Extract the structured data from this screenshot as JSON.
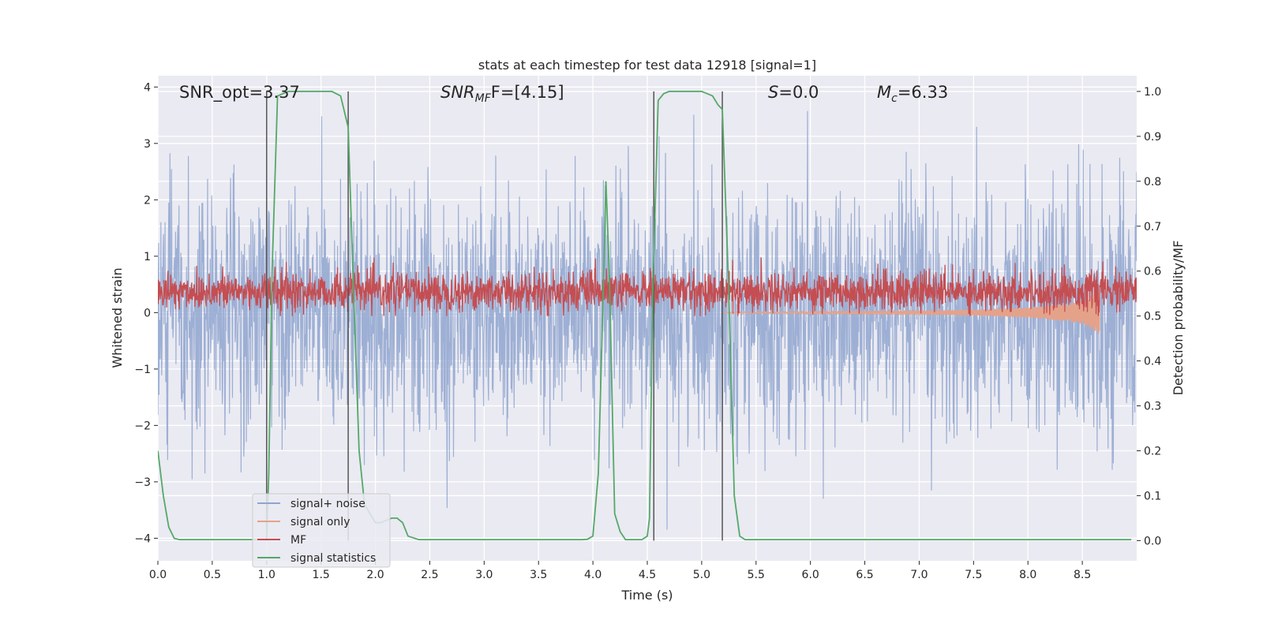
{
  "chart_data": {
    "type": "line",
    "title": "stats at each timestep for test data 12918 [signal=1]",
    "xlabel": "Time (s)",
    "ylabel_left": "Whitened strain",
    "ylabel_right": "Detection probability/MF",
    "xlim": [
      0,
      9.0
    ],
    "ylim_left": [
      -4.4,
      4.2
    ],
    "ylim_right": [
      -0.045,
      1.035
    ],
    "x_ticks": [
      0.0,
      0.5,
      1.0,
      1.5,
      2.0,
      2.5,
      3.0,
      3.5,
      4.0,
      4.5,
      5.0,
      5.5,
      6.0,
      6.5,
      7.0,
      7.5,
      8.0,
      8.5
    ],
    "x_tick_labels": [
      "0.0",
      "0.5",
      "1.0",
      "1.5",
      "2.0",
      "2.5",
      "3.0",
      "3.5",
      "4.0",
      "4.5",
      "5.0",
      "5.5",
      "6.0",
      "6.5",
      "7.0",
      "7.5",
      "8.0",
      "8.5"
    ],
    "y_left_ticks": [
      4,
      3,
      2,
      1,
      0,
      -1,
      -2,
      -3,
      -4
    ],
    "y_left_tick_labels": [
      "4",
      "3",
      "2",
      "1",
      "0",
      "−1",
      "−2",
      "−3",
      "−4"
    ],
    "y_right_ticks": [
      1.0,
      0.9,
      0.8,
      0.7,
      0.6,
      0.5,
      0.4,
      0.3,
      0.2,
      0.1,
      0.0
    ],
    "y_right_tick_labels": [
      "1.0",
      "0.9",
      "0.8",
      "0.7",
      "0.6",
      "0.5",
      "0.4",
      "0.3",
      "0.2",
      "0.1",
      "0.0"
    ],
    "annotations": {
      "snr_opt": "SNR_opt=3.37",
      "snr_mf_main": "SNR",
      "snr_mf_sub": "MF",
      "snr_mf_tail": "F=[4.15]",
      "s_main": "S",
      "s_tail": "=0.0",
      "mc_main": "M",
      "mc_sub": "c",
      "mc_tail": "=6.33"
    },
    "vertical_markers_x": [
      1.0,
      1.75,
      4.56,
      5.19
    ],
    "series": [
      {
        "name": "signal+ noise",
        "color": "#8fa5cf",
        "axis": "left",
        "description": "whitened strain noise, ~gaussian with sigma ~1"
      },
      {
        "name": "signal only",
        "color": "#e5a28a",
        "axis": "left",
        "signal_x": [
          5.2,
          6.0,
          7.0,
          7.5,
          8.0,
          8.3,
          8.5,
          8.66
        ],
        "signal_amp": [
          0.01,
          0.02,
          0.03,
          0.05,
          0.09,
          0.14,
          0.2,
          0.4
        ]
      },
      {
        "name": "MF",
        "color": "#c44e52",
        "axis": "right",
        "description": "matched filter output fluctuating around 0.55"
      },
      {
        "name": "signal statistics",
        "color": "#55a868",
        "axis": "right",
        "x": [
          0.0,
          0.05,
          0.1,
          0.15,
          0.2,
          0.3,
          0.5,
          0.7,
          0.9,
          1.0,
          1.02,
          1.05,
          1.1,
          1.2,
          1.4,
          1.6,
          1.68,
          1.75,
          1.8,
          1.85,
          1.9,
          2.0,
          2.05,
          2.1,
          2.15,
          2.2,
          2.25,
          2.3,
          2.4,
          2.6,
          3.0,
          3.5,
          3.9,
          3.95,
          4.0,
          4.05,
          4.1,
          4.12,
          4.15,
          4.2,
          4.25,
          4.3,
          4.4,
          4.45,
          4.5,
          4.52,
          4.55,
          4.6,
          4.65,
          4.7,
          4.8,
          5.0,
          5.1,
          5.15,
          5.19,
          5.25,
          5.3,
          5.35,
          5.4,
          5.5,
          6.0,
          7.0,
          8.0,
          8.5,
          8.95
        ],
        "y": [
          0.2,
          0.1,
          0.03,
          0.005,
          0.002,
          0.002,
          0.002,
          0.002,
          0.002,
          0.002,
          0.15,
          0.6,
          0.99,
          1.0,
          1.0,
          1.0,
          0.99,
          0.92,
          0.55,
          0.2,
          0.08,
          0.04,
          0.04,
          0.045,
          0.05,
          0.05,
          0.04,
          0.01,
          0.002,
          0.002,
          0.002,
          0.002,
          0.002,
          0.003,
          0.01,
          0.15,
          0.6,
          0.8,
          0.6,
          0.06,
          0.02,
          0.002,
          0.002,
          0.002,
          0.01,
          0.05,
          0.55,
          0.98,
          0.995,
          1.0,
          1.0,
          1.0,
          0.99,
          0.97,
          0.96,
          0.55,
          0.1,
          0.01,
          0.002,
          0.002,
          0.002,
          0.002,
          0.002,
          0.002,
          0.002
        ]
      }
    ]
  }
}
